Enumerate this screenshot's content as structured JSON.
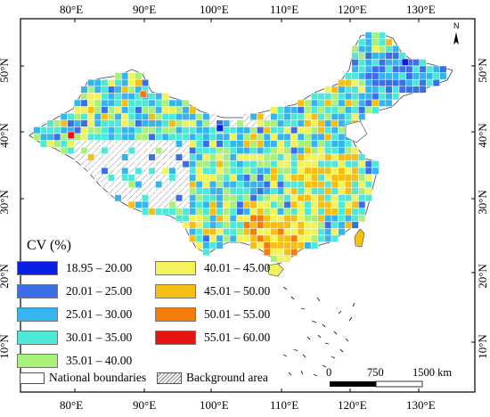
{
  "graticule": {
    "longitude_labels": [
      "80°E",
      "90°E",
      "100°E",
      "110°E",
      "120°E",
      "130°E"
    ],
    "latitude_labels": [
      "50°N",
      "40°N",
      "30°N",
      "20°N",
      "10°N"
    ]
  },
  "legend": {
    "title": "CV (%)",
    "classes": [
      {
        "label": "18.95 – 20.00",
        "color": "#0a1ee6"
      },
      {
        "label": "20.01 – 25.00",
        "color": "#3a6fe8"
      },
      {
        "label": "25.01 – 30.00",
        "color": "#35b4ef"
      },
      {
        "label": "30.01 – 35.00",
        "color": "#4ee8d6"
      },
      {
        "label": "35.01 – 40.00",
        "color": "#a8f07a"
      },
      {
        "label": "40.01 – 45.00",
        "color": "#f2f25a"
      },
      {
        "label": "45.01 – 50.00",
        "color": "#f7be14"
      },
      {
        "label": "50.01 – 55.00",
        "color": "#f57c0a"
      },
      {
        "label": "55.01 – 60.00",
        "color": "#e81414"
      }
    ]
  },
  "map_legend": {
    "national_boundaries": "National boundaries",
    "background_area": "Background area"
  },
  "scale_bar": {
    "labels": [
      "0",
      "750",
      "1500 km"
    ]
  },
  "north_arrow": {
    "label": "N"
  }
}
